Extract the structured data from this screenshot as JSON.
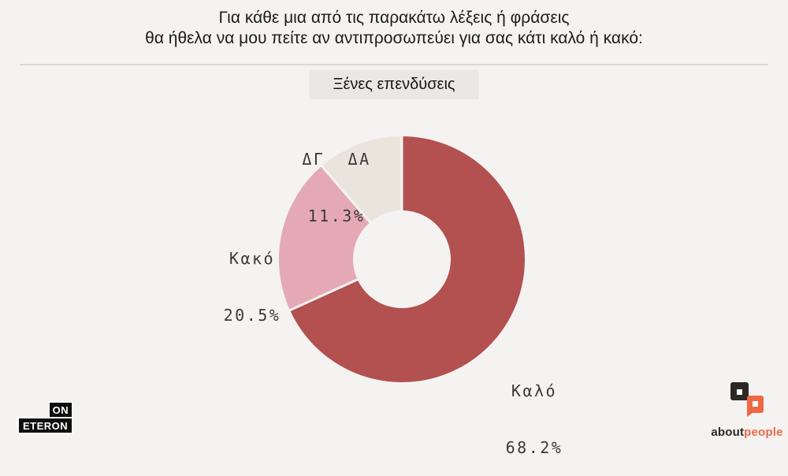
{
  "page": {
    "background": "#f4f3f2"
  },
  "header": {
    "title_line1": "Για κάθε μια από τις παρακάτω λέξεις ή φράσεις",
    "title_line2": "θα ήθελα να μου πείτε αν αντιπροσωπεύει για σας κάτι καλό ή κακό:"
  },
  "subtitle_chip": {
    "label": "Ξένες επενδύσεις"
  },
  "chart_data": {
    "type": "pie",
    "subtype": "donut",
    "title": "Ξένες επενδύσεις",
    "direction": "clockwise",
    "start_angle_deg_from_top": 0,
    "inner_radius_ratio": 0.4,
    "slices": [
      {
        "label": "Καλό",
        "value": 68.2,
        "pct_label": "68.2%",
        "color": "#b25150"
      },
      {
        "label": "Κακό",
        "value": 20.5,
        "pct_label": "20.5%",
        "color": "#e5a9b6"
      },
      {
        "label": "ΔΓ  ΔΑ",
        "value": 11.3,
        "pct_label": "11.3%",
        "color": "#eae5dc"
      }
    ]
  },
  "footer": {
    "eteron_logo": {
      "top": "ON",
      "bottom": "ETERON"
    },
    "aboutpeople_logo": {
      "part1": "about",
      "part2": "people",
      "accent_color": "#eb6a49",
      "dark_color": "#2b2826"
    }
  }
}
